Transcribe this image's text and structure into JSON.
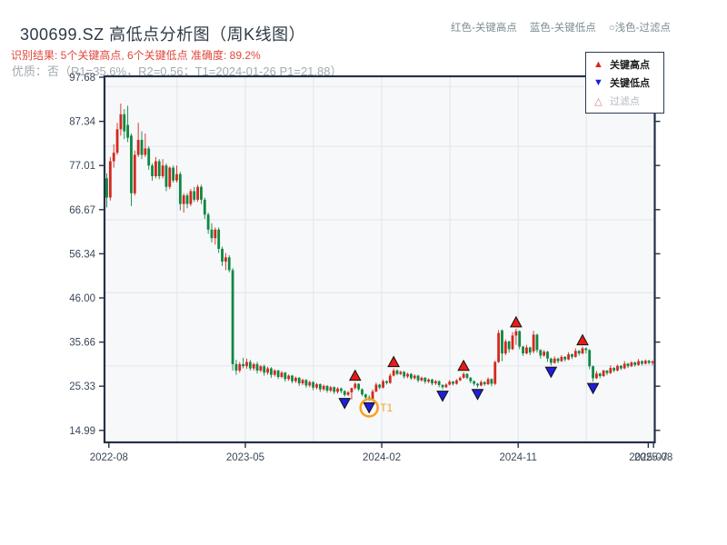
{
  "header": {
    "title": "300699.SZ 高低点分析图（周K线图）",
    "color_key": {
      "high": "红色-关键高点",
      "low": "蓝色-关键低点",
      "filtered": "○浅色-过滤点"
    },
    "result_line": "识别结果: 5个关键高点, 6个关键低点  准确度: 89.2%",
    "quality_line": "优质：否（R1=35.6%，R2=0.56；T1=2024-01-26 P1=21.88）"
  },
  "plot_legend": {
    "items": [
      {
        "symbol": "▲",
        "label": "关键高点",
        "color": "#e02415"
      },
      {
        "symbol": "▼",
        "label": "关键低点",
        "color": "#1f1fd8"
      },
      {
        "symbol": "△",
        "label": "过滤点",
        "color": "#c98377"
      }
    ]
  },
  "chart_data": {
    "type": "candlestick",
    "title": "300699.SZ weekly K-line with key high/low markers",
    "x_unit": "week",
    "ylim": [
      12.2,
      97.68
    ],
    "yticks": [
      97.68,
      87.34,
      77.01,
      66.67,
      56.34,
      46.0,
      35.66,
      25.33,
      14.99
    ],
    "xticks": [
      {
        "label": "2022-08",
        "pos": 0.6
      },
      {
        "label": "2023-05",
        "pos": 39.6
      },
      {
        "label": "2024-02",
        "pos": 78.6
      },
      {
        "label": "2024-11",
        "pos": 117.6
      },
      {
        "label": "2025-07",
        "pos": 154.8
      },
      {
        "label": "2025-08",
        "pos": 156.3
      }
    ],
    "grid_x_pos": [
      20.1,
      39.6,
      59.1,
      78.6,
      98.1,
      117.6,
      137.1
    ],
    "grid_y_price": [
      95.5,
      81.5,
      64.3,
      47.2,
      30.1
    ],
    "ohlc": [
      [
        74,
        75.2,
        67.2,
        69.5
      ],
      [
        69.5,
        79,
        68.8,
        78
      ],
      [
        78,
        82,
        76.5,
        80
      ],
      [
        80,
        87,
        79.5,
        85.5
      ],
      [
        85.5,
        91.5,
        84,
        89
      ],
      [
        89,
        90.2,
        83.2,
        85
      ],
      [
        86.5,
        91,
        82.5,
        83.5
      ],
      [
        84,
        84.5,
        67.5,
        70.5
      ],
      [
        70.5,
        80.5,
        70,
        79.5
      ],
      [
        79.5,
        87,
        79,
        83
      ],
      [
        83,
        85,
        78.5,
        79.5
      ],
      [
        79.5,
        84.5,
        79,
        81
      ],
      [
        81,
        81.5,
        76,
        77
      ],
      [
        77,
        77.5,
        73.5,
        74.5
      ],
      [
        74.5,
        79,
        74,
        78
      ],
      [
        78,
        78.5,
        73.8,
        74.5
      ],
      [
        74.5,
        78.5,
        74,
        77
      ],
      [
        77,
        77.5,
        71,
        72
      ],
      [
        72,
        76.8,
        71.5,
        76.5
      ],
      [
        76.5,
        77,
        73,
        73.5
      ],
      [
        73.5,
        77,
        73,
        75
      ],
      [
        75,
        75.5,
        66.5,
        68
      ],
      [
        68,
        70.5,
        66,
        70
      ],
      [
        70,
        70.5,
        67,
        68
      ],
      [
        68,
        71.5,
        67.5,
        71
      ],
      [
        71,
        72,
        68.5,
        69
      ],
      [
        69,
        72.5,
        68.5,
        72
      ],
      [
        72,
        72.5,
        68,
        69
      ],
      [
        69,
        69.5,
        64.5,
        65.5
      ],
      [
        65.5,
        66,
        61,
        62
      ],
      [
        62,
        63.5,
        59,
        60
      ],
      [
        60,
        62.5,
        58.5,
        62
      ],
      [
        62,
        62.5,
        56.5,
        57.5
      ],
      [
        57.5,
        58,
        53.5,
        54.5
      ],
      [
        54.5,
        56.5,
        52.5,
        55.5
      ],
      [
        55.5,
        56,
        52,
        52.5
      ],
      [
        52.5,
        53,
        29,
        30.5
      ],
      [
        30.5,
        31.5,
        28,
        29
      ],
      [
        29,
        31,
        28.5,
        30.5
      ],
      [
        30.5,
        32,
        29.5,
        30
      ],
      [
        30,
        31.8,
        29.4,
        31
      ],
      [
        31,
        31.5,
        29,
        29.5
      ],
      [
        29.5,
        30.8,
        29,
        30.5
      ],
      [
        30.5,
        31,
        28.3,
        29
      ],
      [
        29,
        30.3,
        28.6,
        30
      ],
      [
        30,
        30.4,
        27.8,
        28.5
      ],
      [
        28.5,
        29.9,
        28,
        29.5
      ],
      [
        29.5,
        29.8,
        27.3,
        28
      ],
      [
        28,
        29.3,
        27.6,
        29
      ],
      [
        29,
        29.2,
        27,
        27.5
      ],
      [
        27.5,
        28.9,
        27.2,
        28.5
      ],
      [
        28.5,
        28.7,
        26.4,
        27
      ],
      [
        27,
        28.1,
        26.6,
        27.8
      ],
      [
        27.8,
        28,
        26,
        26.5
      ],
      [
        26.5,
        27.6,
        26.1,
        27.3
      ],
      [
        27.3,
        27.5,
        25.4,
        26
      ],
      [
        26,
        27.1,
        25.6,
        26.8
      ],
      [
        26.8,
        27,
        25,
        25.5
      ],
      [
        25.5,
        26.6,
        25.1,
        26.3
      ],
      [
        26.3,
        26.5,
        24.4,
        25
      ],
      [
        25,
        26.1,
        24.6,
        25.8
      ],
      [
        25.8,
        26,
        24,
        24.6
      ],
      [
        24.6,
        25.7,
        24.2,
        25.4
      ],
      [
        25.4,
        25.6,
        23.8,
        24.3
      ],
      [
        24.3,
        25.4,
        23.9,
        25.1
      ],
      [
        25.1,
        25.3,
        23.5,
        24
      ],
      [
        24,
        25.1,
        23.6,
        24.8
      ],
      [
        24.8,
        25,
        23.7,
        24.2
      ],
      [
        24.2,
        24.4,
        22.9,
        23.3
      ],
      [
        23.3,
        24.2,
        23,
        23.9
      ],
      [
        23.9,
        25,
        22.2,
        24.9
      ],
      [
        24.9,
        26.3,
        24.5,
        25.9
      ],
      [
        25.9,
        26,
        24.2,
        24.6
      ],
      [
        24.6,
        24.8,
        23,
        23.4
      ],
      [
        23.4,
        23.6,
        22.2,
        22.7
      ],
      [
        22.7,
        23.2,
        21.88,
        22.2
      ],
      [
        22.2,
        24.6,
        22,
        24.1
      ],
      [
        24.1,
        26.2,
        23.9,
        25.7
      ],
      [
        25.7,
        25.9,
        24.6,
        25
      ],
      [
        25,
        26.9,
        24.8,
        26.5
      ],
      [
        26.5,
        26.7,
        25.7,
        26.1
      ],
      [
        26.1,
        28.3,
        25.9,
        27.8
      ],
      [
        27.8,
        29.5,
        27.6,
        29
      ],
      [
        29,
        29.3,
        27.9,
        28.2
      ],
      [
        28.2,
        29,
        27.9,
        28.7
      ],
      [
        28.7,
        28.9,
        27.1,
        27.6
      ],
      [
        27.6,
        28.5,
        27.2,
        28.2
      ],
      [
        28.2,
        28.4,
        26.8,
        27.2
      ],
      [
        27.2,
        28.1,
        26.9,
        27.8
      ],
      [
        27.8,
        28,
        26.2,
        26.7
      ],
      [
        26.7,
        27.6,
        26.4,
        27.3
      ],
      [
        27.3,
        27.5,
        25.9,
        26.4
      ],
      [
        26.4,
        27.2,
        26,
        26.9
      ],
      [
        26.9,
        27.1,
        25.5,
        26
      ],
      [
        26,
        26.8,
        25.6,
        26.5
      ],
      [
        26.5,
        26.7,
        25.1,
        25.6
      ],
      [
        25.6,
        25.8,
        24.6,
        25.1
      ],
      [
        25.1,
        26,
        24.9,
        25.7
      ],
      [
        25.7,
        26.8,
        25.5,
        26.4
      ],
      [
        26.4,
        26.6,
        25.5,
        25.9
      ],
      [
        25.9,
        27,
        25.7,
        26.7
      ],
      [
        26.7,
        27.6,
        26.5,
        27.3
      ],
      [
        27.3,
        28.6,
        27.1,
        28.2
      ],
      [
        28.2,
        28.4,
        26.9,
        27.3
      ],
      [
        27.3,
        27.5,
        26,
        26.5
      ],
      [
        26.5,
        26.7,
        25.4,
        25.9
      ],
      [
        25.9,
        26.1,
        25,
        25.5
      ],
      [
        25.5,
        26.7,
        25.3,
        26.3
      ],
      [
        26.3,
        26.5,
        25.4,
        25.8
      ],
      [
        25.8,
        27.4,
        25.6,
        27
      ],
      [
        27,
        27.2,
        25.3,
        25.9
      ],
      [
        25.9,
        31.3,
        25.6,
        31
      ],
      [
        31,
        38.5,
        30.8,
        37.8
      ],
      [
        38.4,
        38.6,
        31.2,
        33
      ],
      [
        33,
        36.3,
        32.6,
        35.8
      ],
      [
        35.8,
        36,
        33.2,
        34
      ],
      [
        34,
        38,
        33.8,
        37.2
      ],
      [
        37.2,
        38.8,
        35,
        38.2
      ],
      [
        38.2,
        38.4,
        34,
        34.6
      ],
      [
        34.6,
        34.8,
        32.4,
        33
      ],
      [
        33,
        35,
        32.8,
        34.4
      ],
      [
        34.4,
        34.6,
        32.6,
        33.2
      ],
      [
        33.5,
        38.3,
        33,
        37.4
      ],
      [
        37.4,
        37.6,
        33.2,
        33.8
      ],
      [
        33.8,
        34,
        31.8,
        32.5
      ],
      [
        32.5,
        33.8,
        32.2,
        33.4
      ],
      [
        33.4,
        33.6,
        31,
        31.8
      ],
      [
        31.8,
        32,
        30.2,
        30.8
      ],
      [
        30.8,
        32.3,
        30.6,
        31.8
      ],
      [
        31.8,
        32,
        30.7,
        31.2
      ],
      [
        31.2,
        32.6,
        31,
        32.2
      ],
      [
        32.2,
        32.4,
        31.1,
        31.6
      ],
      [
        31.6,
        33.3,
        31.4,
        32.8
      ],
      [
        32.8,
        33,
        31.7,
        32.2
      ],
      [
        32.2,
        34.2,
        32,
        33.6
      ],
      [
        33.6,
        33.8,
        32.5,
        33
      ],
      [
        33,
        34.6,
        32.8,
        34.2
      ],
      [
        34.2,
        34.4,
        33,
        33.8
      ],
      [
        33.8,
        34,
        29.3,
        30
      ],
      [
        30,
        30.2,
        26.4,
        27.2
      ],
      [
        27.2,
        28.9,
        27,
        28.3
      ],
      [
        28.3,
        28.5,
        27.2,
        27.7
      ],
      [
        27.7,
        29.2,
        27.5,
        29
      ],
      [
        29,
        29.1,
        27.9,
        28.4
      ],
      [
        28.4,
        30.2,
        28.2,
        29.6
      ],
      [
        29.6,
        29.8,
        28.6,
        29
      ],
      [
        29,
        30.4,
        28.8,
        30.1
      ],
      [
        30.1,
        30.3,
        29.1,
        29.5
      ],
      [
        29.5,
        31.2,
        29.3,
        30.6
      ],
      [
        30.6,
        30.8,
        29.6,
        30
      ],
      [
        30,
        31.2,
        29.8,
        30.9
      ],
      [
        30.9,
        31.1,
        29.9,
        30.3
      ],
      [
        30.3,
        31.7,
        30.1,
        31.2
      ],
      [
        31.2,
        31.4,
        30.2,
        30.6
      ],
      [
        30.6,
        31.6,
        30.4,
        31.3
      ],
      [
        31.3,
        31.5,
        30.4,
        30.8
      ],
      [
        30.8,
        31.4,
        30.2,
        31.1
      ]
    ],
    "markers": {
      "key_highs_weeks": [
        71,
        82,
        102,
        117,
        136
      ],
      "key_lows_weeks": [
        68,
        75,
        96,
        106,
        127,
        139
      ],
      "t1": {
        "week": 75,
        "label": "T1",
        "price": 21.88
      }
    },
    "colors": {
      "up_candle": "#d3281e",
      "down_candle": "#0e8842",
      "marker_high": "#e81c14",
      "marker_low": "#1f1fd8",
      "marker_edge": "#111111",
      "t1_ring": "#f5a325",
      "plot_bg": "#f7f8fa",
      "grid": "#e3e6ee",
      "spine": "#243047",
      "tick_label": "#3b4859"
    }
  }
}
